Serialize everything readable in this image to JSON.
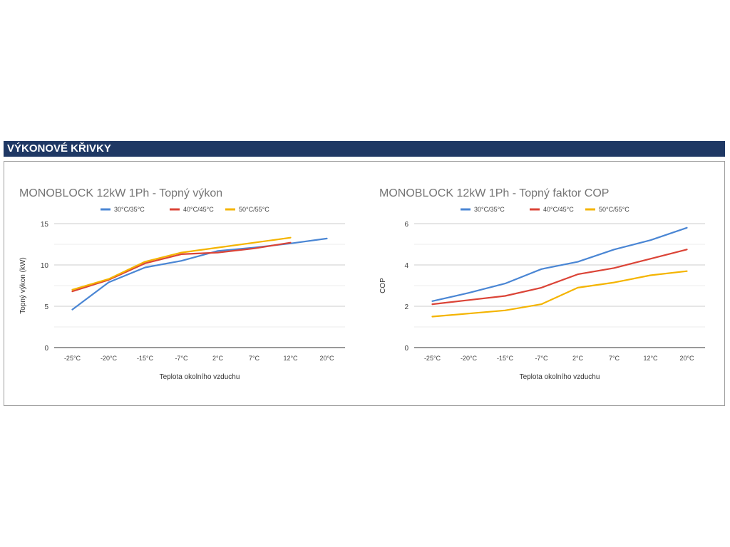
{
  "section_title": "VÝKONOVÉ KŘIVKY",
  "colors": {
    "header_bg": "#1f3864",
    "series": [
      "#4a86d4",
      "#db4437",
      "#f4b400"
    ]
  },
  "chart_data": [
    {
      "type": "line",
      "title": "MONOBLOCK 12kW 1Ph - Topný výkon",
      "xlabel": "Teplota okolního vzduchu",
      "ylabel": "Topný výkon (kW)",
      "categories": [
        "-25°C",
        "-20°C",
        "-15°C",
        "-7°C",
        "2°C",
        "7°C",
        "12°C",
        "20°C"
      ],
      "ylim": [
        0,
        15
      ],
      "yticks": [
        0,
        5,
        10,
        15
      ],
      "grid": true,
      "legend": "top",
      "series": [
        {
          "name": "30°C/35°C",
          "values": [
            4.6,
            7.9,
            9.7,
            10.5,
            11.7,
            12.1,
            12.6,
            13.2
          ]
        },
        {
          "name": "40°C/45°C",
          "values": [
            6.8,
            8.2,
            10.2,
            11.3,
            11.5,
            12.0,
            12.7,
            null
          ]
        },
        {
          "name": "50°C/55°C",
          "values": [
            7.0,
            8.3,
            10.4,
            11.5,
            12.1,
            12.7,
            13.3,
            null
          ]
        }
      ]
    },
    {
      "type": "line",
      "title": "MONOBLOCK 12kW 1Ph - Topný faktor COP",
      "xlabel": "Teplota okolního vzduchu",
      "ylabel": "COP",
      "categories": [
        "-25°C",
        "-20°C",
        "-15°C",
        "-7°C",
        "2°C",
        "7°C",
        "12°C",
        "20°C"
      ],
      "ylim": [
        0,
        6
      ],
      "yticks": [
        0,
        2,
        4,
        6
      ],
      "grid": true,
      "legend": "top",
      "series": [
        {
          "name": "30°C/35°C",
          "values": [
            2.25,
            2.65,
            3.1,
            3.8,
            4.15,
            4.75,
            5.2,
            5.8
          ]
        },
        {
          "name": "40°C/45°C",
          "values": [
            2.1,
            2.3,
            2.5,
            2.9,
            3.55,
            3.85,
            4.3,
            4.75
          ]
        },
        {
          "name": "50°C/55°C",
          "values": [
            1.5,
            1.65,
            1.8,
            2.1,
            2.9,
            3.15,
            3.5,
            3.7
          ]
        }
      ]
    }
  ]
}
